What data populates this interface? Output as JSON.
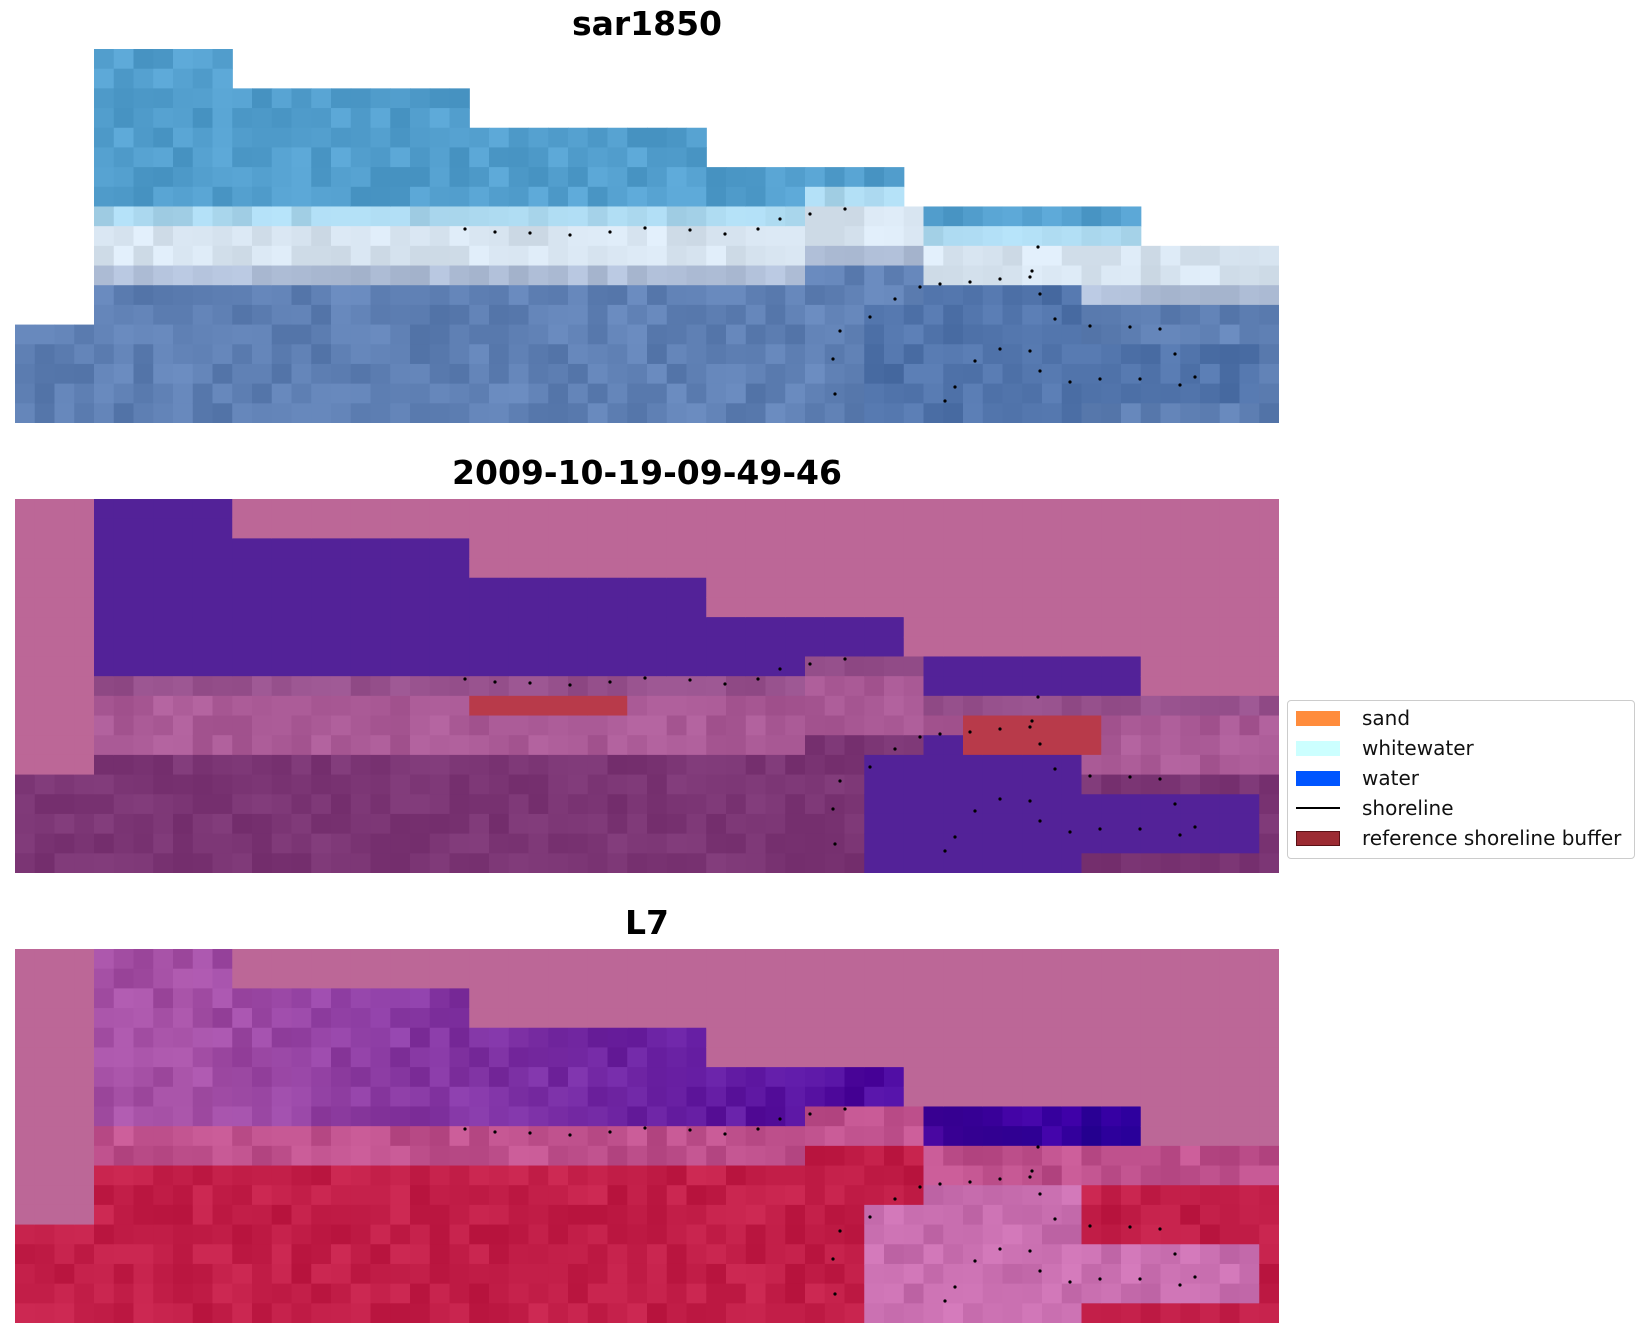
{
  "panels": [
    {
      "title": "sar1850",
      "style": "rgb"
    },
    {
      "title": "2009-10-19-09-49-46",
      "style": "classified"
    },
    {
      "title": "L7",
      "style": "index"
    }
  ],
  "legend": {
    "items": [
      {
        "label": "sand",
        "color": "#ff8c3c",
        "kind": "patch"
      },
      {
        "label": "whitewater",
        "color": "#ccffff",
        "kind": "patch"
      },
      {
        "label": "water",
        "color": "#0055ff",
        "kind": "patch"
      },
      {
        "label": "shoreline",
        "color": "#000000",
        "kind": "line"
      },
      {
        "label": "reference shoreline buffer",
        "color": "#9c2b33",
        "kind": "patch"
      }
    ]
  },
  "colors": {
    "background": "#ffffff",
    "nodata_pink": "#bc6797",
    "class_water_purple": "#532298",
    "class_buffer_red": "#b83a4a",
    "land_mauve": "#7b3574",
    "index_crimson": "#c21e48",
    "shoreline_points": "#000000"
  }
}
